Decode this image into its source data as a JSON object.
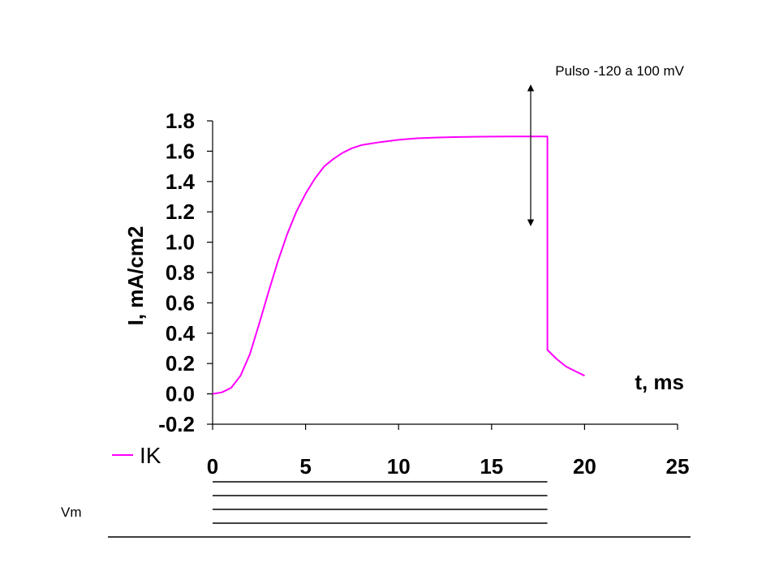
{
  "chart_data": {
    "type": "line",
    "title": "",
    "xlabel": "t, ms",
    "ylabel": "I, mA/cm2",
    "xlim": [
      0,
      25
    ],
    "ylim": [
      -0.2,
      1.8
    ],
    "xticks": [
      "0",
      "5",
      "10",
      "15",
      "20",
      "25"
    ],
    "yticks": [
      "1.8",
      "1.6",
      "1.4",
      "1.2",
      "1.0",
      "0.8",
      "0.6",
      "0.4",
      "0.2",
      "0.0",
      "-0.2"
    ],
    "grid": false,
    "legend_position": "bottom-left",
    "series": [
      {
        "name": "IK",
        "color": "#ff00ff",
        "x": [
          0,
          0.5,
          1,
          1.5,
          2,
          2.5,
          3,
          3.5,
          4,
          4.5,
          5,
          5.5,
          6,
          6.5,
          7,
          7.5,
          8,
          9,
          10,
          11,
          12,
          13,
          14,
          15,
          16,
          17,
          18,
          18,
          18.5,
          19,
          19.5,
          20
        ],
        "y": [
          0.0,
          0.01,
          0.04,
          0.12,
          0.26,
          0.46,
          0.67,
          0.87,
          1.05,
          1.2,
          1.32,
          1.42,
          1.5,
          1.55,
          1.59,
          1.62,
          1.64,
          1.66,
          1.675,
          1.685,
          1.69,
          1.693,
          1.695,
          1.696,
          1.697,
          1.697,
          1.697,
          0.29,
          0.23,
          0.18,
          0.15,
          0.12
        ]
      }
    ],
    "annotations": [
      {
        "text": "Pulso -120 a 100 mV",
        "x": 17,
        "arrow": "double",
        "y_range": [
          1.1,
          2.2
        ]
      }
    ]
  },
  "protocol": {
    "label": "Vm",
    "pulse_end_ms": 18,
    "levels": 4
  }
}
